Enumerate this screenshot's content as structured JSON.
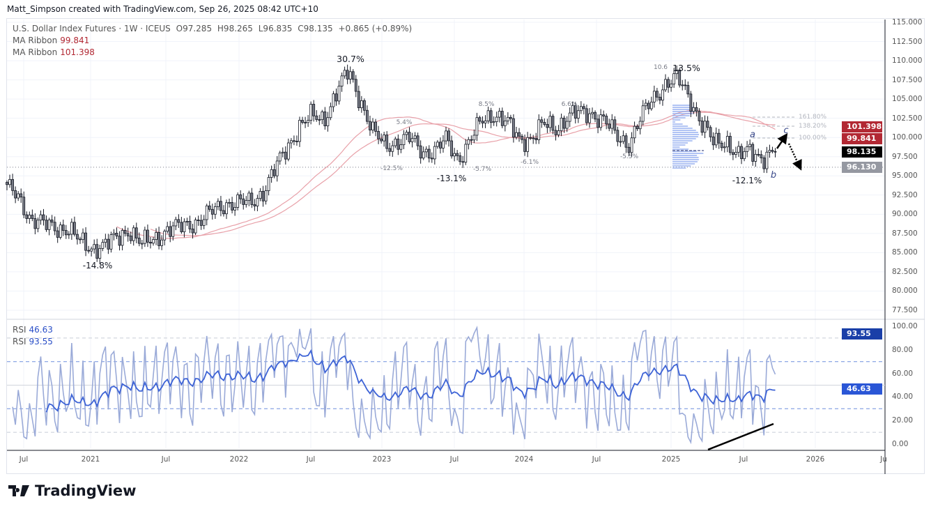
{
  "credit": "Matt_Simpson created with TradingView.com, Sep 26, 2025 08:42 UTC+10",
  "legend": {
    "symbol": "U.S. Dollar Index Futures · 1W · ICEUS",
    "open": "O97.285",
    "high": "H98.265",
    "low": "L96.835",
    "close": "C98.135",
    "change": "+0.865 (+0.89%)",
    "ma1_label": "MA Ribbon",
    "ma1_value": "99.841",
    "ma2_label": "MA Ribbon",
    "ma2_value": "101.398",
    "rsi1_label": "RSI",
    "rsi1_value": "46.63",
    "rsi2_label": "RSI",
    "rsi2_value": "93.55"
  },
  "colors": {
    "ma": "#e8a0a8",
    "badge_red": "#b22833",
    "badge_last": "#000000",
    "badge_gray": "#9598a1",
    "rsi_slow": "#3d63d6",
    "rsi_fast": "#9aaad8",
    "volume_profile": "#8fa9f0"
  },
  "chart_data": {
    "type": "candlestick",
    "interval": "1W",
    "price_axis": {
      "range": [
        77.5,
        115
      ],
      "ticks": [
        "115.000",
        "112.500",
        "110.000",
        "107.500",
        "105.000",
        "102.500",
        "100.000",
        "97.500",
        "95.000",
        "92.500",
        "90.000",
        "87.500",
        "85.000",
        "82.500",
        "80.000",
        "77.500"
      ]
    },
    "rsi_axis": {
      "range": [
        0,
        100
      ],
      "ticks": [
        "100.00",
        "80.00",
        "60.00",
        "40.00",
        "20.00",
        "0.00"
      ],
      "levels": [
        90,
        70,
        50,
        30,
        10
      ]
    },
    "x_ticks": [
      "Jul",
      "2021",
      "Jul",
      "2022",
      "Jul",
      "2023",
      "Jul",
      "2024",
      "Jul",
      "2025",
      "Jul",
      "2026",
      "Ju"
    ],
    "monthly_close_from": "2020-06",
    "monthly_close": [
      93.4,
      92.2,
      89.3,
      88.6,
      88.4,
      88.0,
      86.4,
      85.7,
      85.8,
      86.9,
      88.1,
      86.0,
      86.8,
      87.8,
      88.2,
      88.8,
      89.3,
      90.5,
      91.5,
      91.4,
      91.5,
      93.0,
      95.8,
      98.8,
      101.5,
      102.7,
      102.5,
      105.7,
      108.6,
      104.9,
      100.6,
      99.0,
      99.5,
      99.8,
      98.3,
      98.2,
      99.6,
      97.2,
      99.7,
      102.2,
      103.2,
      101.9,
      99.7,
      100.0,
      101.6,
      101.2,
      102.8,
      103.1,
      103.2,
      102.1,
      100.1,
      99.3,
      102.5,
      105.2,
      107.0,
      107.6,
      105.2,
      101.7,
      99.1,
      99.7,
      97.5,
      98.2,
      97.5,
      98.135
    ],
    "price_badges": [
      {
        "value": "101.398",
        "price": 101.398,
        "color": "#b22833"
      },
      {
        "value": "99.841",
        "price": 99.841,
        "color": "#b22833"
      },
      {
        "value": "98.135",
        "price": 98.135,
        "color": "#000000"
      },
      {
        "value": "96.130",
        "price": 96.13,
        "color": "#9598a1"
      }
    ],
    "rsi_badges": [
      {
        "value": "93.55",
        "level": 93.55,
        "color": "#1a3fa8"
      },
      {
        "value": "46.63",
        "level": 46.63,
        "color": "#2a56d6"
      }
    ],
    "horizontal_line": 96.13,
    "annotations": [
      "30.7%",
      "-14.8%",
      "5.4%",
      "-12.5%",
      "-13.1%",
      "-5.7%",
      "8.5%",
      "6.6%",
      "-6.1%",
      "-5.5%",
      "10.6",
      "13.5%",
      "-12.1%"
    ],
    "wave_labels": [
      "a",
      "b",
      "c"
    ],
    "fib_levels": [
      "161.80%",
      "138.20%",
      "100.00%"
    ]
  },
  "logo": "TradingView"
}
